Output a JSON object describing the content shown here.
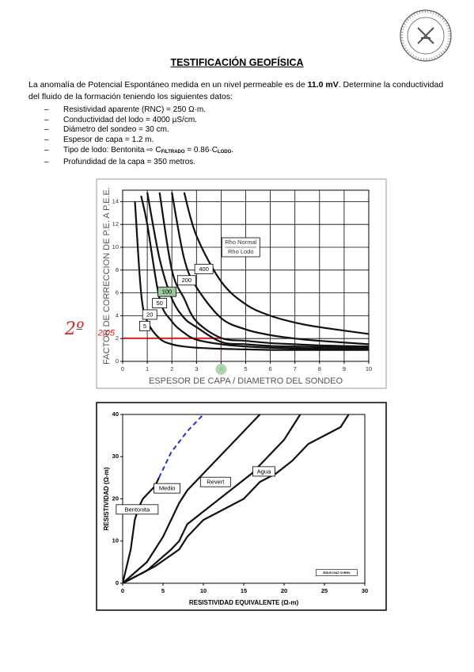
{
  "document": {
    "title": "TESTIFICACIÓN GEOFÍSICA",
    "paragraph": {
      "before": "La anomalía de Potencial Espontáneo medida en un nivel permeable es de ",
      "bold": "11.0 mV",
      "after": ". Determine la conductividad del fluido de la formación teniendo los siguientes datos:"
    },
    "bullets": [
      "Resistividad aparente (RNC) = 250 Ω·m.",
      "Conductividad del lodo = 4000 µS/cm.",
      "Diámetro del sondeo = 30 cm.",
      "Espesor de capa = 1.2 m.",
      {
        "parts": [
          "Tipo de lodo: Bentonita  ⇨  C",
          "FILTRADO",
          " = 0.86·C",
          "LODO",
          "."
        ]
      },
      "Profundidad de la capa = 350 metros."
    ],
    "margin_note": "2º"
  },
  "chart_data": [
    {
      "type": "line",
      "xlabel": "ESPESOR DE CAPA / DIAMETRO DEL SONDEO",
      "ylabel": "FACTOR DE CORRECCION DE P.E. A P.E.E.",
      "annotation": [
        "Rho Normal",
        "Rho Lodo"
      ],
      "x": [
        0.5,
        0.75,
        1,
        1.5,
        2,
        2.5,
        3,
        4,
        5,
        6,
        7,
        8,
        10
      ],
      "series": [
        {
          "name": "5",
          "color": "#111",
          "values": [
            14,
            6,
            3.5,
            2,
            1.5,
            1.3,
            1.2,
            1.1,
            1.05,
            1.0,
            1.0,
            1.0,
            1.0
          ]
        },
        {
          "name": "20",
          "color": "#111",
          "values": [
            null,
            14.5,
            12,
            5.5,
            3.5,
            2.5,
            1.9,
            1.5,
            1.3,
            1.2,
            1.15,
            1.1,
            1.1
          ]
        },
        {
          "name": "50",
          "color": "#111",
          "values": [
            null,
            null,
            14.8,
            9,
            5.5,
            3.8,
            3.0,
            1.7,
            1.5,
            1.35,
            1.3,
            1.25,
            1.2
          ]
        },
        {
          "name": "100",
          "color": "#111",
          "values": [
            null,
            null,
            null,
            14.8,
            8,
            5.5,
            3.5,
            2.05,
            1.8,
            1.6,
            1.5,
            1.4,
            1.3
          ]
        },
        {
          "name": "200",
          "color": "#111",
          "values": [
            null,
            null,
            null,
            null,
            14.8,
            9,
            6.5,
            3.8,
            2.8,
            2.3,
            2.0,
            1.8,
            1.5
          ]
        },
        {
          "name": "400",
          "color": "#111",
          "values": [
            null,
            null,
            null,
            null,
            null,
            14.8,
            11,
            7,
            5,
            4,
            3.4,
            3,
            2.4
          ]
        }
      ],
      "reading": {
        "x": 4,
        "y": {
          "value": 2.05,
          "label": "2,05"
        },
        "color": "#d22"
      },
      "xlim": [
        0,
        10
      ],
      "ylim": [
        0,
        15
      ],
      "xticks": [
        0,
        1,
        2,
        3,
        4,
        5,
        6,
        7,
        8,
        9,
        10
      ],
      "yticks": [
        0,
        2,
        4,
        6,
        8,
        10,
        12,
        14
      ],
      "grid": true
    },
    {
      "type": "line",
      "xlabel": "RESISTIVIDAD EQUIVALENTE (Ω-m)",
      "ylabel": "RESISTIVIDAD (Ω-m)",
      "credit": "JESUS DIAZ CURIEL",
      "series": [
        {
          "name": "Bentonita",
          "color": "#111",
          "x": [
            0,
            1,
            1.5,
            2,
            2.5,
            3,
            4,
            4.5
          ],
          "values": [
            0,
            8,
            15,
            18,
            20,
            21,
            23,
            25
          ]
        },
        {
          "color": "#2233dd",
          "dashed": true,
          "x": [
            4.5,
            6,
            8,
            10
          ],
          "values": [
            25,
            31,
            36,
            40
          ]
        },
        {
          "name": "Medio",
          "color": "#111",
          "x": [
            0,
            3,
            5,
            6,
            7,
            8,
            10,
            12,
            14,
            16,
            17
          ],
          "values": [
            0,
            5,
            11,
            15,
            19,
            22,
            26,
            30,
            34,
            38,
            40
          ]
        },
        {
          "name": "Revert",
          "color": "#111",
          "x": [
            0,
            3,
            6,
            7,
            8,
            10,
            12,
            14,
            16,
            18,
            20,
            22
          ],
          "values": [
            0,
            3,
            8,
            10,
            14,
            17,
            20,
            23,
            26,
            30,
            34,
            40
          ]
        },
        {
          "name": "Agua",
          "color": "#111",
          "x": [
            0,
            4,
            7,
            8,
            10,
            12,
            15,
            17,
            19,
            21,
            23,
            25,
            27,
            28
          ],
          "values": [
            0,
            4,
            8,
            11,
            15,
            17,
            20,
            24,
            26,
            29,
            33,
            35,
            37,
            40
          ]
        }
      ],
      "xlim": [
        0,
        30
      ],
      "ylim": [
        0,
        40
      ],
      "xticks": [
        0,
        5,
        10,
        15,
        20,
        25,
        30
      ],
      "yticks": [
        0,
        10,
        20,
        30,
        40
      ],
      "grid": false
    }
  ]
}
